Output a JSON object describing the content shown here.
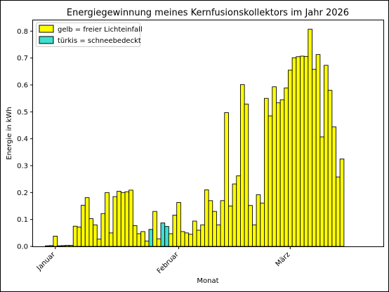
{
  "chart_data": {
    "type": "bar",
    "title": "Energiegewinnung meines Kernfusionskollektors im Jahr 2026",
    "xlabel": "Monat",
    "ylabel": "Energie in kWh",
    "ylim": [
      0,
      0.84
    ],
    "yticks": [
      0.0,
      0.1,
      0.2,
      0.3,
      0.4,
      0.5,
      0.6,
      0.7,
      0.8
    ],
    "x_ticks": [
      {
        "label": "Januar",
        "day": 1
      },
      {
        "label": "Februar",
        "day": 32
      },
      {
        "label": "März",
        "day": 60
      }
    ],
    "grid": false,
    "legend_position": "top-left",
    "series": [
      {
        "name": "gelb = freier Lichteinfall",
        "color": "#ffff00",
        "key": "free"
      },
      {
        "name": "türkis = schneebedeckt",
        "color": "#40e0d0",
        "key": "snow"
      }
    ],
    "start_day": -1,
    "values": [
      0.002,
      0.003,
      0.038,
      0.002,
      0.003,
      0.004,
      0.004,
      0.075,
      0.072,
      0.153,
      0.181,
      0.103,
      0.08,
      0.027,
      0.122,
      0.2,
      0.05,
      0.185,
      0.205,
      0.2,
      0.203,
      0.209,
      0.077,
      0.047,
      0.055,
      0.02,
      0.063,
      0.13,
      0.028,
      0.087,
      0.074,
      0.047,
      0.116,
      0.163,
      0.055,
      0.05,
      0.045,
      0.094,
      0.06,
      0.08,
      0.21,
      0.17,
      0.13,
      0.08,
      0.17,
      0.497,
      0.15,
      0.232,
      0.262,
      0.601,
      0.529,
      0.152,
      0.08,
      0.192,
      0.161,
      0.55,
      0.485,
      0.593,
      0.534,
      0.545,
      0.589,
      0.655,
      0.701,
      0.705,
      0.707,
      0.706,
      0.807,
      0.658,
      0.713,
      0.407,
      0.673,
      0.58,
      0.444,
      0.258,
      0.325
    ],
    "snow_flags": [
      0,
      0,
      0,
      0,
      0,
      0,
      0,
      0,
      0,
      0,
      0,
      0,
      0,
      0,
      0,
      0,
      0,
      0,
      0,
      0,
      0,
      0,
      0,
      0,
      0,
      0,
      1,
      0,
      0,
      1,
      1,
      0,
      0,
      0,
      0,
      0,
      0,
      0,
      0,
      0,
      0,
      0,
      0,
      0,
      0,
      0,
      0,
      0,
      0,
      0,
      0,
      0,
      0,
      0,
      0,
      0,
      0,
      0,
      0,
      0,
      0,
      0,
      0,
      0,
      0,
      0,
      0,
      0,
      0,
      0,
      0,
      0,
      0,
      0,
      0
    ]
  }
}
